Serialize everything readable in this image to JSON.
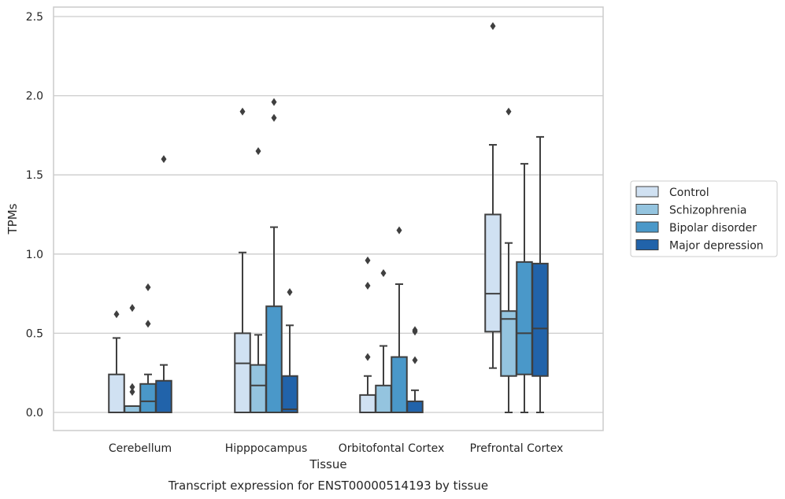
{
  "chart_data": {
    "type": "box",
    "xlabel": "Tissue",
    "ylabel": "TPMs",
    "caption": "Transcript expression for ENST00000514193 by tissue",
    "ylim": [
      -0.12,
      2.57
    ],
    "yticks": [
      0.0,
      0.5,
      1.0,
      1.5,
      2.0,
      2.5
    ],
    "ytick_labels": [
      "0.0",
      "0.5",
      "1.0",
      "1.5",
      "2.0",
      "2.5"
    ],
    "grid": true,
    "legend_position": "center-right-outside",
    "categories": [
      "Cerebellum",
      "Hipppocampus",
      "Orbitofontal Cortex",
      "Prefrontal Cortex"
    ],
    "series": [
      {
        "name": "Control",
        "color": "#d0e1f2",
        "boxes": [
          {
            "whislo": 0.0,
            "q1": 0.0,
            "med": 0.0,
            "q3": 0.24,
            "whishi": 0.47,
            "fliers": [
              0.62
            ]
          },
          {
            "whislo": 0.0,
            "q1": 0.0,
            "med": 0.31,
            "q3": 0.5,
            "whishi": 1.01,
            "fliers": [
              1.9
            ]
          },
          {
            "whislo": 0.0,
            "q1": 0.0,
            "med": 0.0,
            "q3": 0.11,
            "whishi": 0.23,
            "fliers": [
              0.35,
              0.8,
              0.96
            ]
          },
          {
            "whislo": 0.28,
            "q1": 0.51,
            "med": 0.75,
            "q3": 1.25,
            "whishi": 1.69,
            "fliers": [
              2.44
            ]
          }
        ]
      },
      {
        "name": "Schizophrenia",
        "color": "#94c4df",
        "boxes": [
          {
            "whislo": 0.0,
            "q1": 0.0,
            "med": 0.0,
            "q3": 0.04,
            "whishi": 0.04,
            "fliers": [
              0.13,
              0.16,
              0.66
            ]
          },
          {
            "whislo": 0.0,
            "q1": 0.0,
            "med": 0.17,
            "q3": 0.3,
            "whishi": 0.49,
            "fliers": [
              1.65
            ]
          },
          {
            "whislo": 0.0,
            "q1": 0.0,
            "med": 0.0,
            "q3": 0.17,
            "whishi": 0.42,
            "fliers": [
              0.88
            ]
          },
          {
            "whislo": 0.0,
            "q1": 0.23,
            "med": 0.59,
            "q3": 0.64,
            "whishi": 1.07,
            "fliers": [
              1.9
            ]
          }
        ]
      },
      {
        "name": "Bipolar disorder",
        "color": "#4a98c9",
        "boxes": [
          {
            "whislo": 0.0,
            "q1": 0.0,
            "med": 0.07,
            "q3": 0.18,
            "whishi": 0.24,
            "fliers": [
              0.56,
              0.79
            ]
          },
          {
            "whislo": 0.0,
            "q1": 0.0,
            "med": 0.0,
            "q3": 0.67,
            "whishi": 1.17,
            "fliers": [
              1.86,
              1.96
            ]
          },
          {
            "whislo": 0.0,
            "q1": 0.0,
            "med": 0.0,
            "q3": 0.35,
            "whishi": 0.81,
            "fliers": [
              1.15
            ]
          },
          {
            "whislo": 0.0,
            "q1": 0.24,
            "med": 0.5,
            "q3": 0.95,
            "whishi": 1.57,
            "fliers": []
          }
        ]
      },
      {
        "name": "Major depression",
        "color": "#2163aa",
        "boxes": [
          {
            "whislo": 0.0,
            "q1": 0.0,
            "med": 0.0,
            "q3": 0.2,
            "whishi": 0.3,
            "fliers": [
              1.6
            ]
          },
          {
            "whislo": 0.0,
            "q1": 0.0,
            "med": 0.02,
            "q3": 0.23,
            "whishi": 0.55,
            "fliers": [
              0.76
            ]
          },
          {
            "whislo": 0.0,
            "q1": 0.0,
            "med": 0.0,
            "q3": 0.07,
            "whishi": 0.14,
            "fliers": [
              0.33,
              0.51,
              0.52
            ]
          },
          {
            "whislo": 0.0,
            "q1": 0.23,
            "med": 0.53,
            "q3": 0.94,
            "whishi": 1.74,
            "fliers": []
          }
        ]
      }
    ],
    "line_color": "#3f3f3f",
    "grid_color": "#cccccc"
  }
}
